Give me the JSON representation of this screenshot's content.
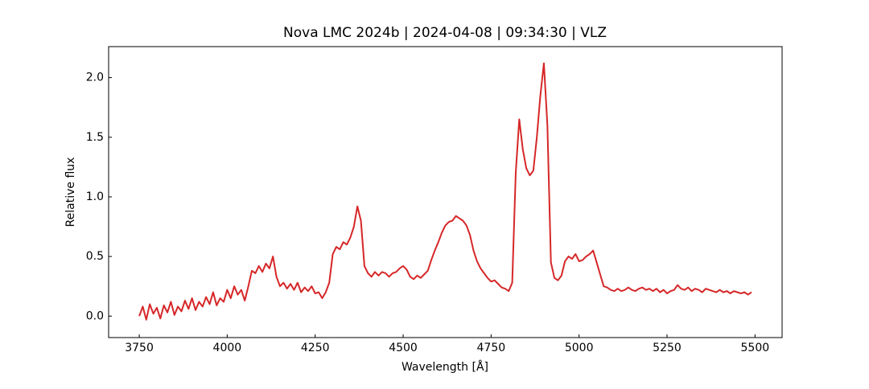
{
  "chart_data": {
    "type": "line",
    "title": "Nova LMC 2024b | 2024-04-08 | 09:34:30 | VLZ",
    "xlabel": "Wavelength [Å]",
    "ylabel": "Relative flux",
    "color": "#d62728",
    "xlim": [
      3663,
      5577
    ],
    "ylim": [
      -0.18,
      2.26
    ],
    "xticks": [
      3750,
      4000,
      4250,
      4500,
      4750,
      5000,
      5250,
      5500
    ],
    "yticks": [
      {
        "value": 0,
        "label": "0.0"
      },
      {
        "value": 0.5,
        "label": "0.5"
      },
      {
        "value": 1,
        "label": "1.0"
      },
      {
        "value": 1.5,
        "label": "1.5"
      },
      {
        "value": 2,
        "label": "2.0"
      }
    ],
    "x": [
      3750,
      3760,
      3770,
      3780,
      3790,
      3800,
      3810,
      3820,
      3830,
      3840,
      3850,
      3860,
      3870,
      3880,
      3890,
      3900,
      3910,
      3920,
      3930,
      3940,
      3950,
      3960,
      3970,
      3980,
      3990,
      4000,
      4010,
      4020,
      4030,
      4040,
      4050,
      4060,
      4070,
      4080,
      4090,
      4100,
      4110,
      4120,
      4130,
      4140,
      4150,
      4160,
      4170,
      4180,
      4190,
      4200,
      4210,
      4220,
      4230,
      4240,
      4250,
      4260,
      4270,
      4280,
      4290,
      4300,
      4310,
      4320,
      4330,
      4340,
      4350,
      4360,
      4370,
      4380,
      4390,
      4400,
      4410,
      4420,
      4430,
      4440,
      4450,
      4460,
      4470,
      4480,
      4490,
      4500,
      4510,
      4520,
      4530,
      4540,
      4550,
      4560,
      4570,
      4580,
      4590,
      4600,
      4610,
      4620,
      4630,
      4640,
      4650,
      4660,
      4670,
      4680,
      4690,
      4700,
      4710,
      4720,
      4730,
      4740,
      4750,
      4760,
      4770,
      4780,
      4790,
      4800,
      4810,
      4820,
      4830,
      4840,
      4850,
      4860,
      4870,
      4880,
      4890,
      4900,
      4910,
      4920,
      4930,
      4940,
      4950,
      4960,
      4970,
      4980,
      4990,
      5000,
      5010,
      5020,
      5030,
      5040,
      5050,
      5060,
      5070,
      5080,
      5090,
      5100,
      5110,
      5120,
      5130,
      5140,
      5150,
      5160,
      5170,
      5180,
      5190,
      5200,
      5210,
      5220,
      5230,
      5240,
      5250,
      5260,
      5270,
      5280,
      5290,
      5300,
      5310,
      5320,
      5330,
      5340,
      5350,
      5360,
      5370,
      5380,
      5390,
      5400,
      5410,
      5420,
      5430,
      5440,
      5450,
      5460,
      5470,
      5480,
      5490
    ],
    "values": [
      0.0,
      0.08,
      -0.03,
      0.1,
      0.02,
      0.07,
      -0.02,
      0.09,
      0.03,
      0.12,
      0.01,
      0.08,
      0.04,
      0.13,
      0.06,
      0.15,
      0.05,
      0.12,
      0.08,
      0.16,
      0.1,
      0.2,
      0.09,
      0.15,
      0.12,
      0.22,
      0.15,
      0.25,
      0.18,
      0.22,
      0.13,
      0.25,
      0.38,
      0.36,
      0.42,
      0.37,
      0.44,
      0.4,
      0.5,
      0.33,
      0.25,
      0.28,
      0.23,
      0.27,
      0.22,
      0.28,
      0.2,
      0.24,
      0.21,
      0.25,
      0.19,
      0.2,
      0.15,
      0.2,
      0.28,
      0.52,
      0.58,
      0.56,
      0.62,
      0.6,
      0.66,
      0.75,
      0.92,
      0.8,
      0.42,
      0.36,
      0.33,
      0.37,
      0.34,
      0.37,
      0.36,
      0.33,
      0.36,
      0.37,
      0.4,
      0.42,
      0.39,
      0.33,
      0.31,
      0.34,
      0.32,
      0.35,
      0.38,
      0.47,
      0.55,
      0.62,
      0.7,
      0.76,
      0.79,
      0.8,
      0.84,
      0.82,
      0.8,
      0.76,
      0.68,
      0.55,
      0.46,
      0.4,
      0.36,
      0.32,
      0.29,
      0.3,
      0.27,
      0.24,
      0.23,
      0.21,
      0.28,
      1.2,
      1.65,
      1.4,
      1.24,
      1.18,
      1.22,
      1.5,
      1.85,
      2.12,
      1.6,
      0.45,
      0.32,
      0.3,
      0.34,
      0.46,
      0.5,
      0.48,
      0.52,
      0.46,
      0.47,
      0.5,
      0.52,
      0.55,
      0.45,
      0.35,
      0.25,
      0.24,
      0.22,
      0.21,
      0.23,
      0.21,
      0.22,
      0.24,
      0.22,
      0.21,
      0.23,
      0.24,
      0.22,
      0.23,
      0.21,
      0.23,
      0.2,
      0.22,
      0.19,
      0.21,
      0.22,
      0.26,
      0.23,
      0.22,
      0.24,
      0.21,
      0.23,
      0.22,
      0.2,
      0.23,
      0.22,
      0.21,
      0.2,
      0.22,
      0.2,
      0.21,
      0.19,
      0.21,
      0.2,
      0.19,
      0.2,
      0.18,
      0.2
    ]
  }
}
